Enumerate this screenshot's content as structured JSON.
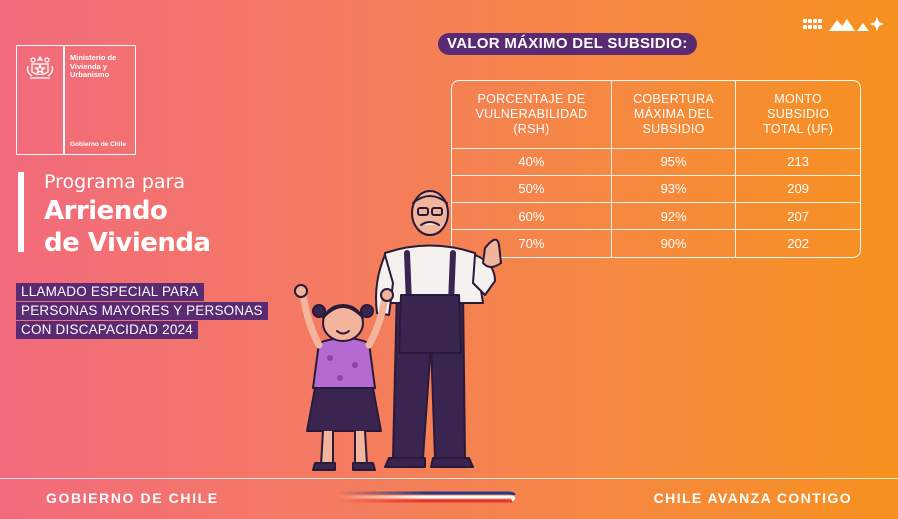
{
  "logo": {
    "ministry_line1": "Ministerio de",
    "ministry_line2": "Vivienda y",
    "ministry_line3": "Urbanismo",
    "government": "Gobierno de Chile"
  },
  "title": {
    "line1": "Programa para",
    "line2": "Arriendo",
    "line3": "de Vivienda"
  },
  "callout": {
    "line1": "LLAMADO ESPECIAL PARA",
    "line2": "PERSONAS MAYORES Y PERSONAS",
    "line3": "CON DISCAPACIDAD 2024"
  },
  "table": {
    "heading": "VALOR MÁXIMO DEL SUBSIDIO:",
    "headers": [
      [
        "PORCENTAJE DE",
        "VULNERABILIDAD",
        "(RSH)"
      ],
      [
        "COBERTURA",
        "MÁXIMA DEL",
        "SUBSIDIO"
      ],
      [
        "MONTO",
        "SUBSIDIO",
        "TOTAL (UF)"
      ]
    ],
    "rows": [
      [
        "40%",
        "95%",
        "213"
      ],
      [
        "50%",
        "93%",
        "209"
      ],
      [
        "60%",
        "92%",
        "207"
      ],
      [
        "70%",
        "90%",
        "202"
      ]
    ]
  },
  "footer": {
    "left": "GOBIERNO DE CHILE",
    "right": "CHILE AVANZA CONTIGO"
  },
  "colors": {
    "accent_purple": "#5a2a73",
    "gradient_left": "#f26a7d",
    "gradient_right": "#f7911f",
    "flag_blue": "#1d3c8f",
    "flag_red": "#e5342c"
  },
  "icons": {
    "emblem": "chile-coat-of-arms-icon",
    "brand": "brand-marks-icon",
    "illustration": "grandfather-and-girl-illustration"
  }
}
